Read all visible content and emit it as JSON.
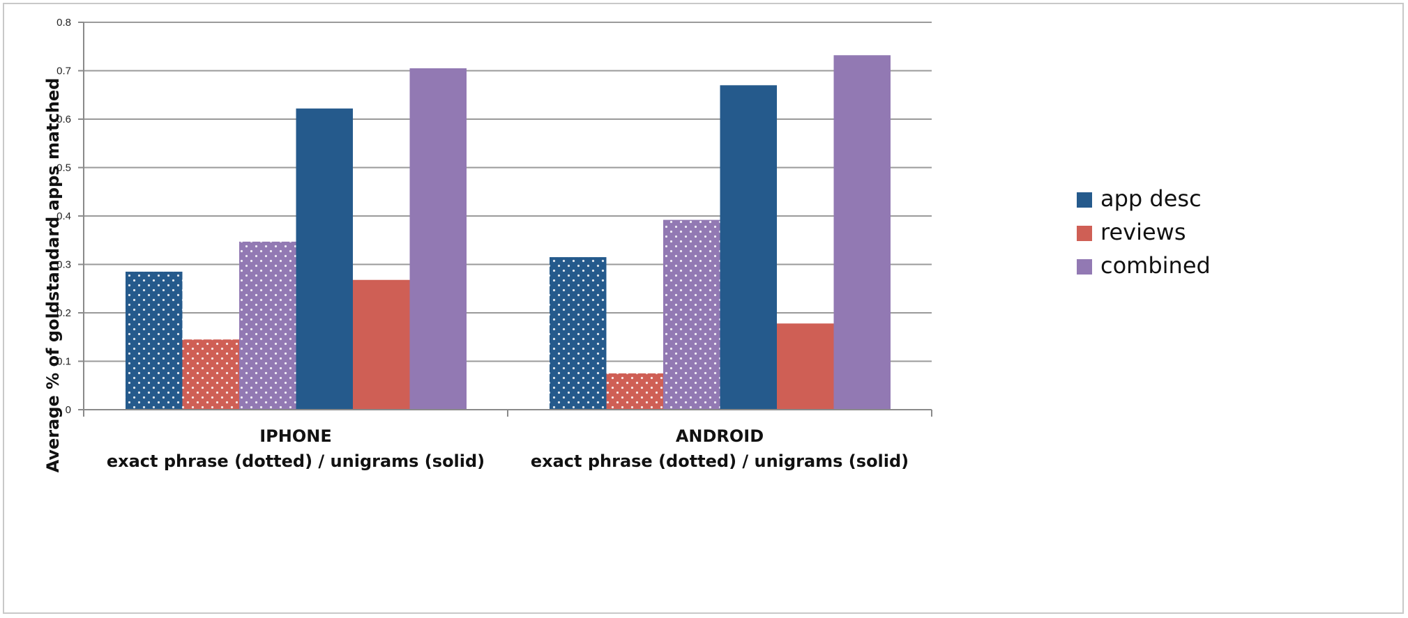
{
  "chart_data": {
    "type": "bar",
    "ylabel": "Average % of goldstandard apps matched",
    "ylim": [
      0,
      0.8
    ],
    "yticks": [
      "0",
      "0.1",
      "0.2",
      "0.3",
      "0.4",
      "0.5",
      "0.6",
      "0.7",
      "0.8"
    ],
    "grid": true,
    "legend_position": "right",
    "groups": [
      {
        "title": "IPHONE",
        "subtitle": "exact phrase (dotted) / unigrams (solid)"
      },
      {
        "title": "ANDROID",
        "subtitle": "exact phrase (dotted) / unigrams (solid)"
      }
    ],
    "bar_columns": [
      "app desc (dotted)",
      "reviews (dotted)",
      "combined (dotted)",
      "app desc (solid)",
      "reviews (solid)",
      "combined (solid)"
    ],
    "series": [
      {
        "name": "app desc",
        "color": "#255a8c",
        "values": {
          "IPHONE": {
            "exact phrase": 0.285,
            "unigrams": 0.622
          },
          "ANDROID": {
            "exact phrase": 0.315,
            "unigrams": 0.67
          }
        }
      },
      {
        "name": "reviews",
        "color": "#cf5f55",
        "values": {
          "IPHONE": {
            "exact phrase": 0.145,
            "unigrams": 0.268
          },
          "ANDROID": {
            "exact phrase": 0.075,
            "unigrams": 0.178
          }
        }
      },
      {
        "name": "combined",
        "color": "#9279b3",
        "values": {
          "IPHONE": {
            "exact phrase": 0.347,
            "unigrams": 0.705
          },
          "ANDROID": {
            "exact phrase": 0.392,
            "unigrams": 0.732
          }
        }
      }
    ]
  }
}
